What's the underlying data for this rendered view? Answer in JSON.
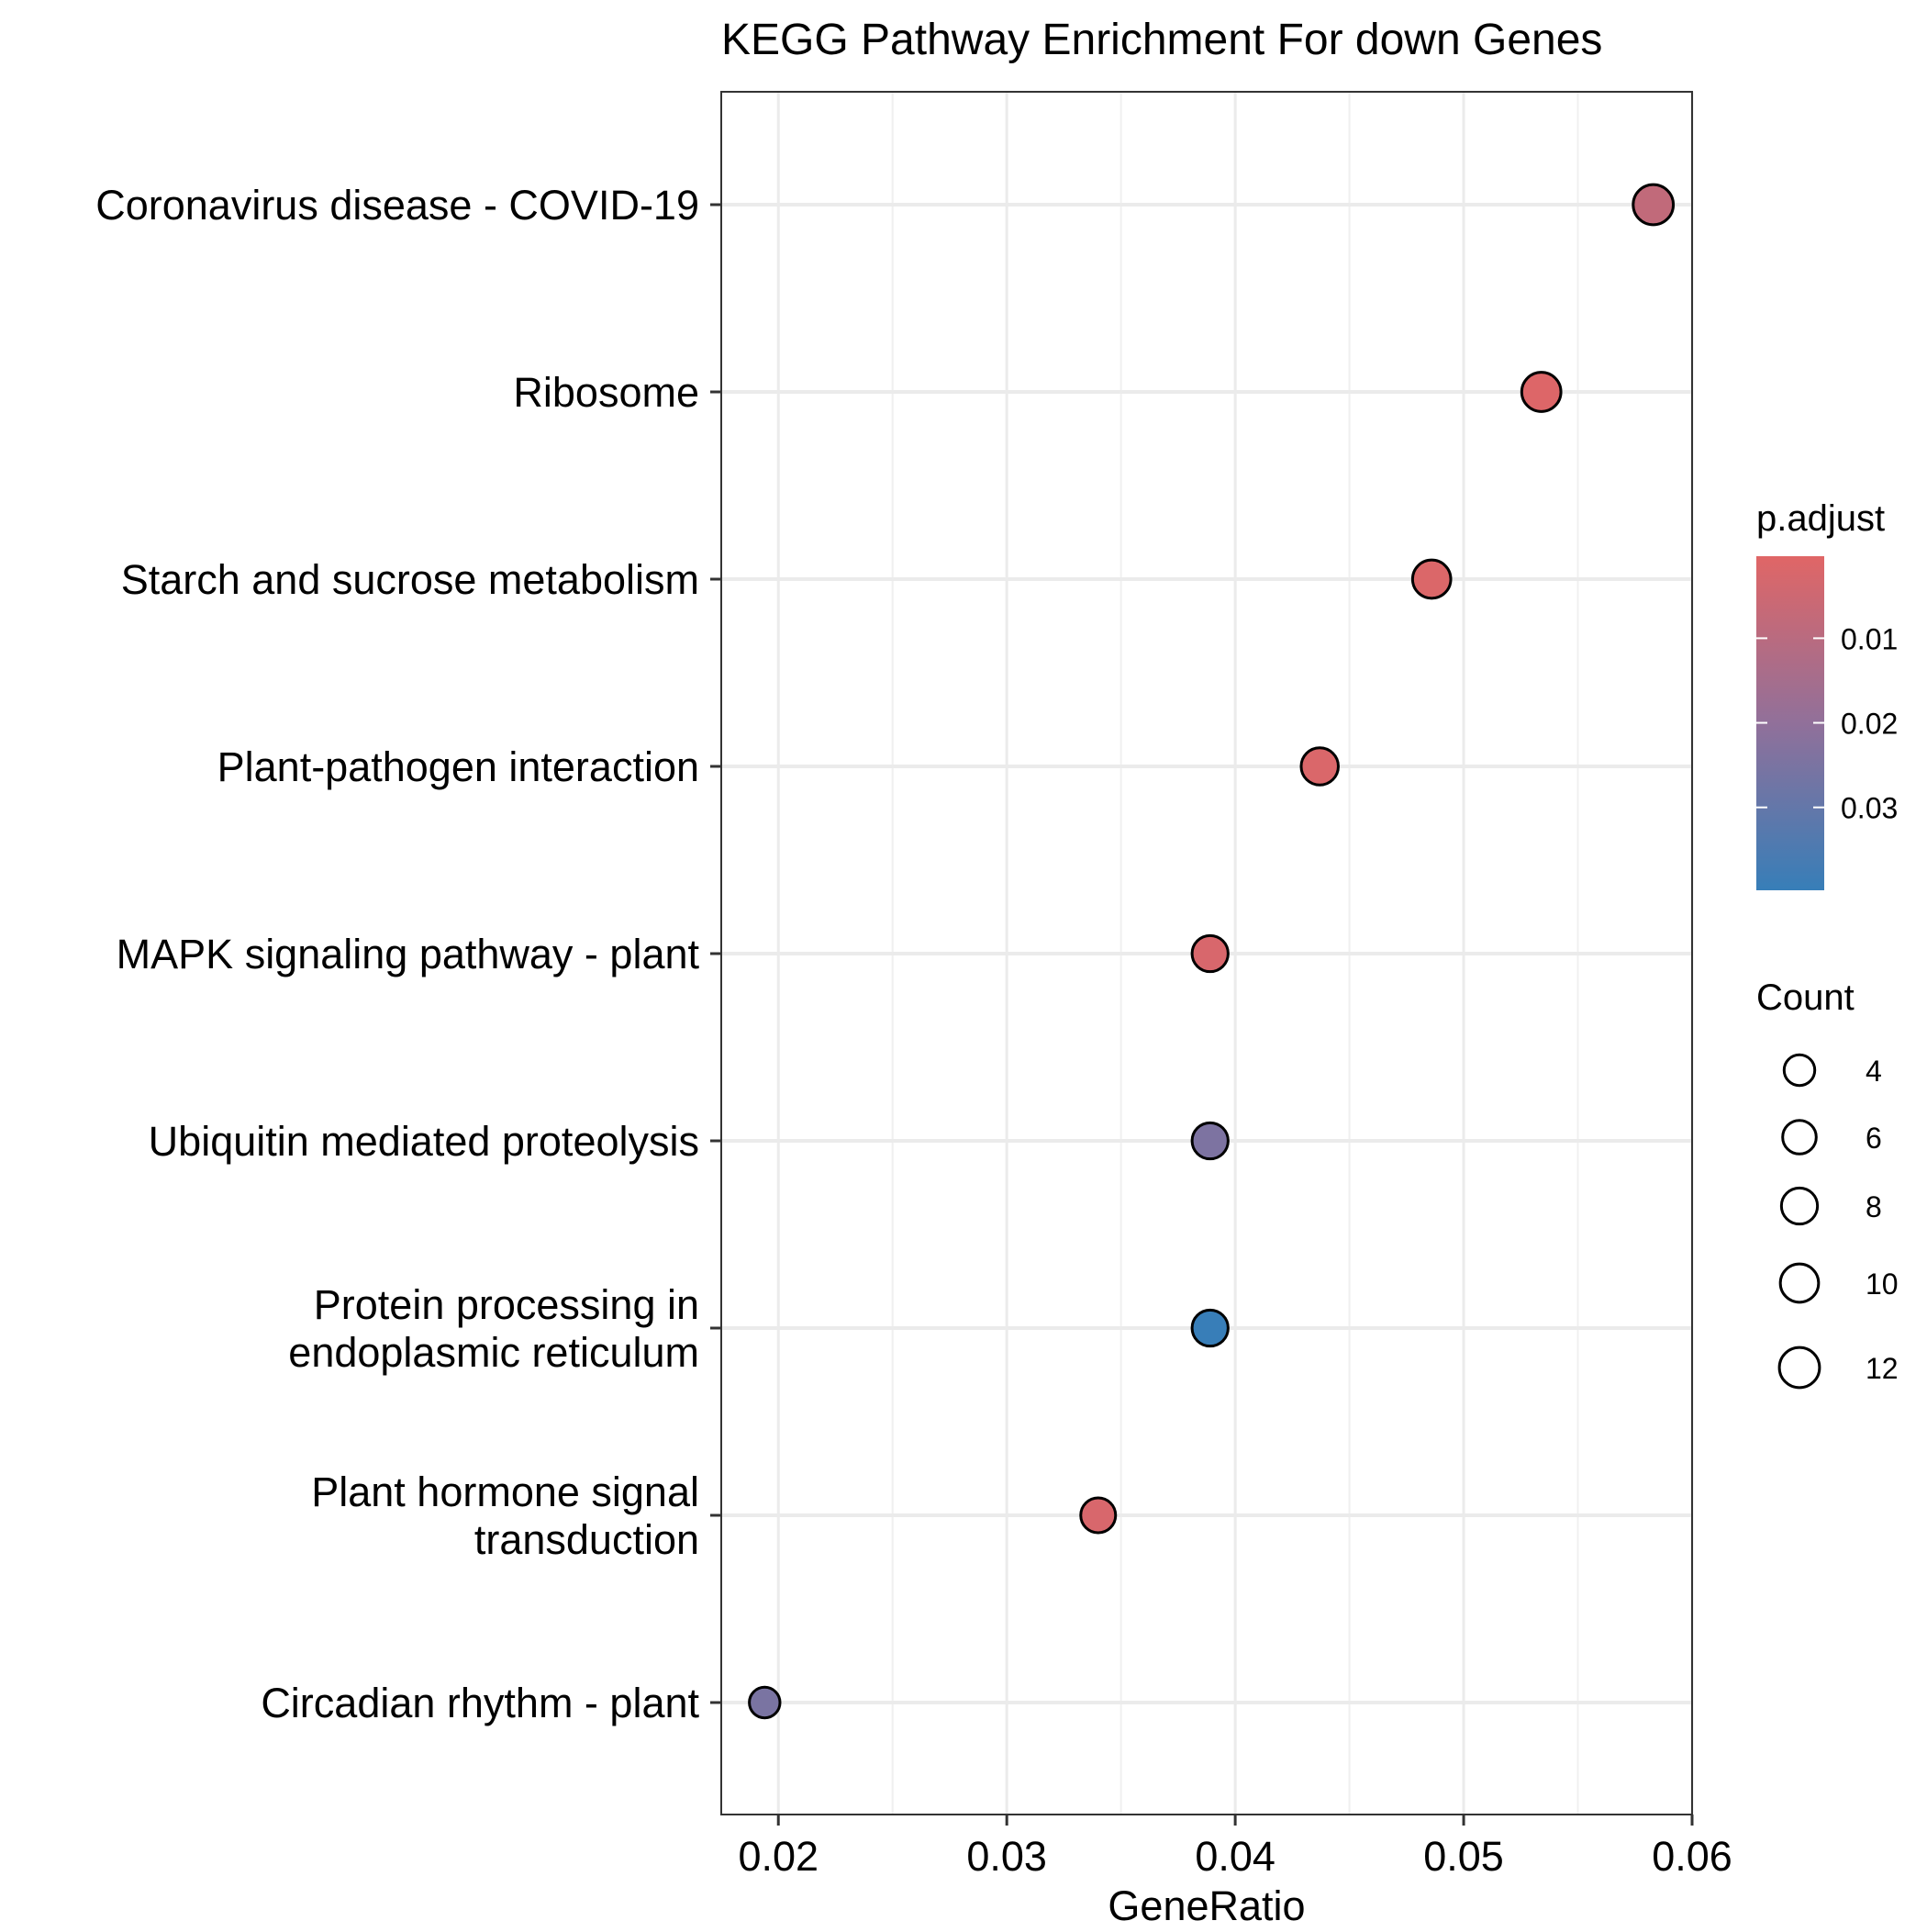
{
  "chart_data": {
    "type": "scatter",
    "title": "KEGG Pathway Enrichment For down Genes",
    "xlabel": "GeneRatio",
    "ylabel": "",
    "xlim": [
      0.0175,
      0.06
    ],
    "x_ticks": [
      "0.02",
      "0.03",
      "0.04",
      "0.05",
      "0.06"
    ],
    "grid": true,
    "points": [
      {
        "label": "Coronavirus disease - COVID-19",
        "lines": [
          "Coronavirus disease - COVID-19"
        ],
        "x": 0.0583,
        "count": 12,
        "p_adjust": 0.008
      },
      {
        "label": "Ribosome",
        "lines": [
          "Ribosome"
        ],
        "x": 0.0534,
        "count": 11,
        "p_adjust": 0.0011
      },
      {
        "label": "Starch and sucrose metabolism",
        "lines": [
          "Starch and sucrose metabolism"
        ],
        "x": 0.0486,
        "count": 10,
        "p_adjust": 0.0016
      },
      {
        "label": "Plant-pathogen interaction",
        "lines": [
          "Plant-pathogen interaction"
        ],
        "x": 0.0437,
        "count": 9,
        "p_adjust": 0.0019
      },
      {
        "label": "MAPK signaling pathway - plant",
        "lines": [
          "MAPK signaling pathway - plant"
        ],
        "x": 0.0389,
        "count": 8,
        "p_adjust": 0.0024
      },
      {
        "label": "Ubiquitin mediated proteolysis",
        "lines": [
          "Ubiquitin mediated proteolysis"
        ],
        "x": 0.0389,
        "count": 8,
        "p_adjust": 0.0245
      },
      {
        "label": "Protein processing in endoplasmic reticulum",
        "lines": [
          "Protein processing in",
          "endoplasmic reticulum"
        ],
        "x": 0.0389,
        "count": 8,
        "p_adjust": 0.0395
      },
      {
        "label": "Plant hormone signal transduction",
        "lines": [
          "Plant hormone signal",
          "transduction"
        ],
        "x": 0.034,
        "count": 7,
        "p_adjust": 0.0024
      },
      {
        "label": "Circadian rhythm - plant",
        "lines": [
          "Circadian rhythm - plant"
        ],
        "x": 0.0194,
        "count": 4,
        "p_adjust": 0.025
      }
    ],
    "color_legend": {
      "title": "p.adjust",
      "range": [
        0.0003,
        0.0398
      ],
      "ticks": [
        0.01,
        0.02,
        0.03
      ],
      "tick_labels": [
        "0.01",
        "0.02",
        "0.03"
      ],
      "low_color": "#e06666",
      "high_color": "#377eb8"
    },
    "size_legend": {
      "title": "Count",
      "values": [
        4,
        6,
        8,
        10,
        12
      ],
      "labels": [
        "4",
        "6",
        "8",
        "10",
        "12"
      ]
    },
    "legend_position": "right"
  }
}
